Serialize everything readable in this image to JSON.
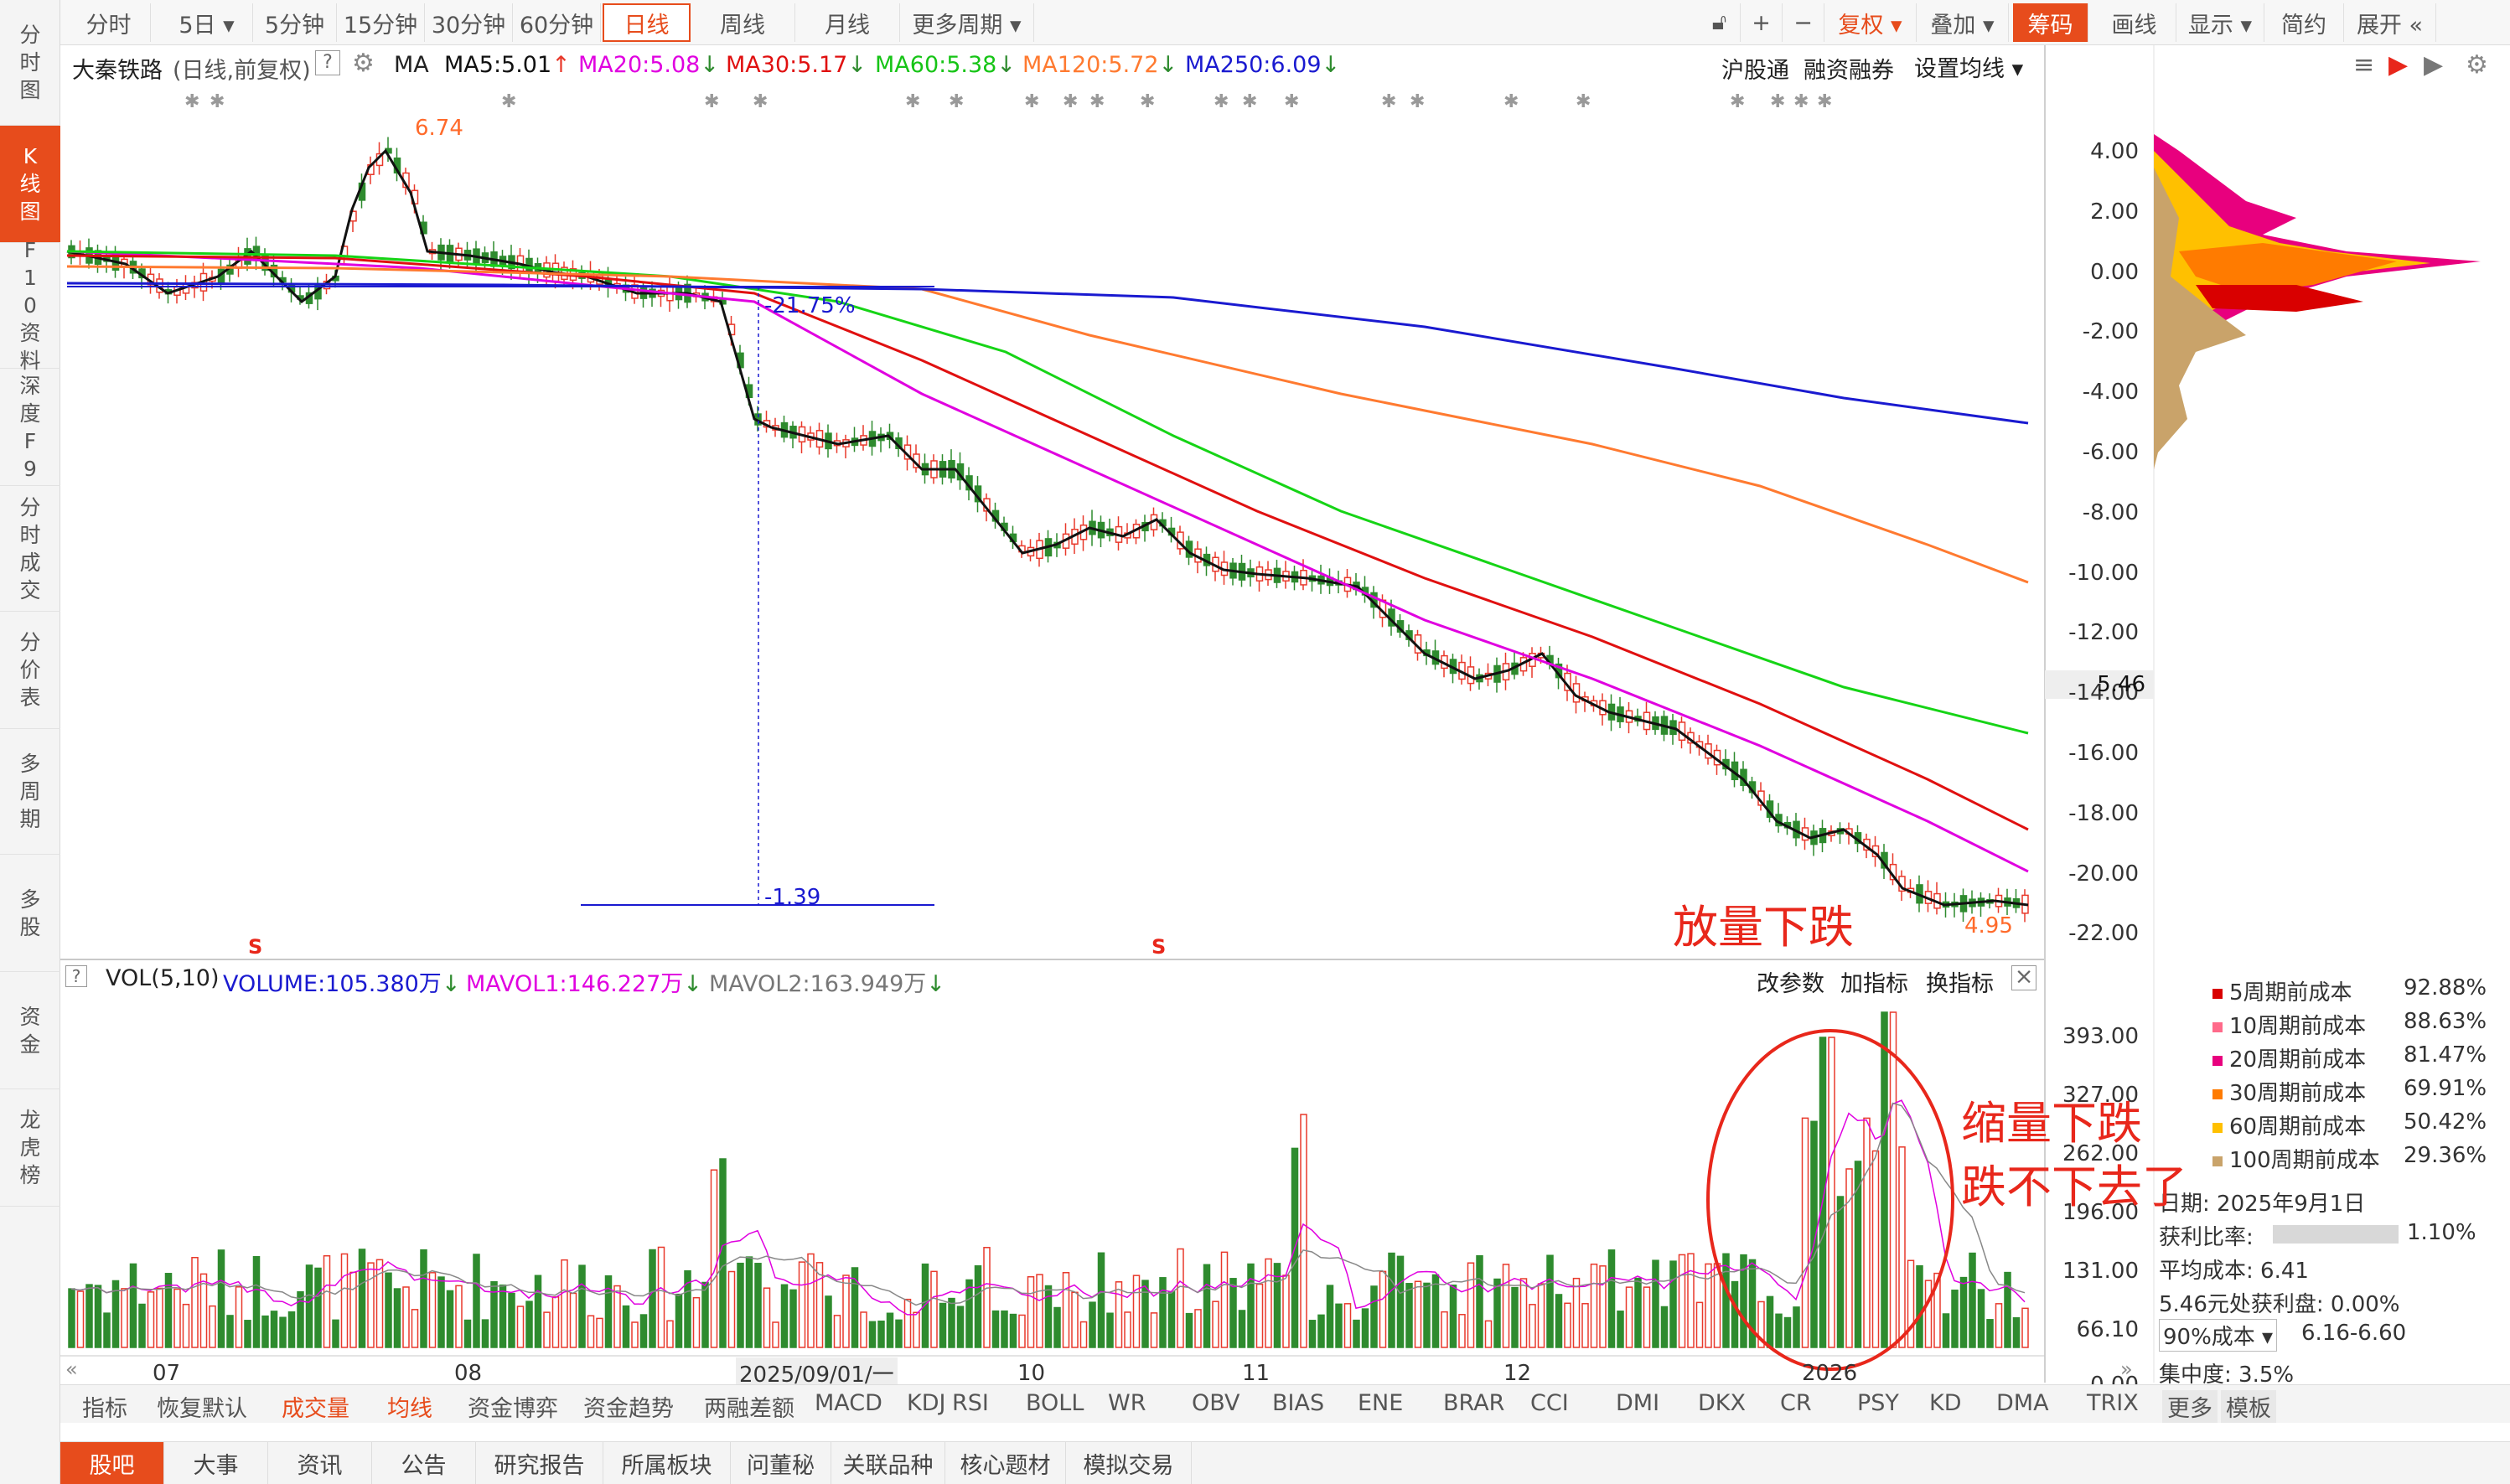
{
  "left_nav": [
    {
      "label": "分时图"
    },
    {
      "label": "K线图"
    },
    {
      "label": "F10资料"
    },
    {
      "label": "深度F9"
    },
    {
      "label": "分时成交"
    },
    {
      "label": "分价表"
    },
    {
      "label": "多周期"
    },
    {
      "label": "多股"
    },
    {
      "label": "资金"
    },
    {
      "label": "龙虎榜"
    }
  ],
  "toolbar": {
    "periods": [
      "分时",
      "5日 ▾",
      "5分钟",
      "15分钟",
      "30分钟",
      "60分钟",
      "日线",
      "周线",
      "月线",
      "更多周期 ▾"
    ],
    "right": [
      "复权 ▾",
      "叠加 ▾",
      "筹码",
      "画线",
      "显示 ▾",
      "简约",
      "展开 «"
    ],
    "plus": "+",
    "minus": "−"
  },
  "header": {
    "stock": "大秦铁路",
    "mode": "(日线,前复权)",
    "help": "?",
    "ma": "MA",
    "ma5": "MA5:5.01",
    "ma5_arrow": "↑",
    "ma20": "MA20:5.08",
    "ma20_arrow": "↓",
    "ma30": "MA30:5.17",
    "ma30_arrow": "↓",
    "ma60": "MA60:5.38",
    "ma60_arrow": "↓",
    "ma120": "MA120:5.72",
    "ma120_arrow": "↓",
    "ma250": "MA250:6.09",
    "ma250_arrow": "↓",
    "links": [
      "沪股通",
      "融资融券",
      "设置均线 ▾"
    ]
  },
  "price_labels": {
    "high": "6.74",
    "low": "4.95",
    "pct": "-21.75%",
    "diff": "-1.39",
    "current": "5.46"
  },
  "price_axis": [
    "4.00",
    "2.00",
    "0.00",
    "-2.00",
    "-4.00",
    "-6.00",
    "-8.00",
    "-10.00",
    "-12.00",
    "-14.00",
    "-16.00",
    "-18.00",
    "-20.00",
    "-22.00"
  ],
  "vol_header": {
    "name": "VOL(5,10)",
    "volume": "VOLUME:105.380万",
    "volume_arrow": "↓",
    "mavol1": "MAVOL1:146.227万",
    "mavol1_arrow": "↓",
    "mavol2": "MAVOL2:163.949万",
    "mavol2_arrow": "↓",
    "links": [
      "改参数",
      "加指标",
      "换指标"
    ]
  },
  "vol_axis": [
    "393.00",
    "327.00",
    "262.00",
    "196.00",
    "131.00",
    "66.10",
    "0.00"
  ],
  "date_axis": {
    "labels": [
      "07",
      "08",
      "2025/09/01/一",
      "10",
      "11",
      "12",
      "2026"
    ]
  },
  "chip": {
    "legend": [
      {
        "label": "5周期前成本",
        "value": "92.88%",
        "color": "#d90000"
      },
      {
        "label": "10周期前成本",
        "value": "88.63%",
        "color": "#ff6a8a"
      },
      {
        "label": "20周期前成本",
        "value": "81.47%",
        "color": "#e8007e"
      },
      {
        "label": "30周期前成本",
        "value": "69.91%",
        "color": "#ff7b00"
      },
      {
        "label": "60周期前成本",
        "value": "50.42%",
        "color": "#ffc000"
      },
      {
        "label": "100周期前成本",
        "value": "29.36%",
        "color": "#c9a36a"
      }
    ],
    "date": "日期: 2025年9月1日",
    "ratio_label": "获利比率:",
    "ratio_value": "1.10%",
    "avg": "平均成本: 6.41",
    "profit": "5.46元处获利盘: 0.00%",
    "cost_select": "90%成本 ▾",
    "cost_range": "6.16-6.60",
    "concentration": "集中度: 3.5%"
  },
  "indicator_tabs": [
    "指标",
    "恢复默认",
    "成交量",
    "均线",
    "资金博弈",
    "资金趋势",
    "两融差额",
    "MACD",
    "KDJ",
    "RSI",
    "BOLL",
    "WR",
    "OBV",
    "BIAS",
    "ENE",
    "BRAR",
    "CCI",
    "DMI",
    "DKX",
    "CR",
    "PSY",
    "KD",
    "DMA",
    "TRIX",
    "更多",
    "模板"
  ],
  "bottom_tabs": [
    "股吧",
    "大事",
    "资讯",
    "公告",
    "研究报告",
    "所属板块",
    "问董秘",
    "关联品种",
    "核心题材",
    "模拟交易"
  ],
  "annotations": {
    "a1": "放量下跌",
    "a2": "缩量下跌",
    "a3": "跌不下去了"
  },
  "colors": {
    "up": "#e8392b",
    "down": "#2e8b2e",
    "ma5": "#111111",
    "ma20": "#e000e0",
    "ma30": "#e01010",
    "ma60": "#16d416",
    "ma120": "#ff7a30",
    "ma250": "#1a1ad0",
    "accent": "#e74c1c"
  }
}
